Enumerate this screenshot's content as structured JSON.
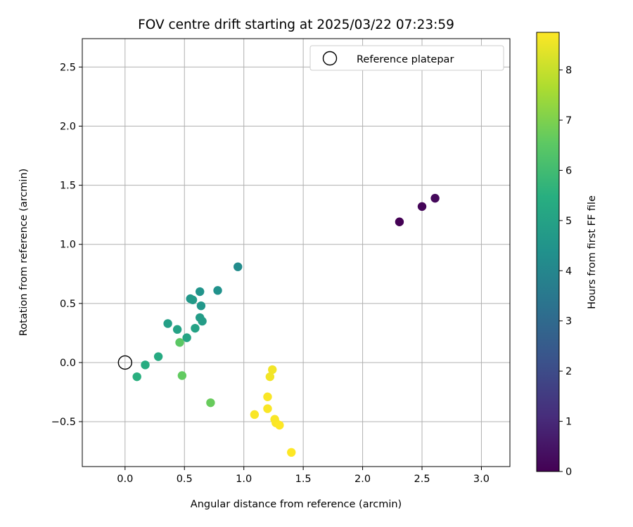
{
  "chart_data": {
    "type": "scatter",
    "title": "FOV centre drift starting at 2025/03/22 07:23:59",
    "xlabel": "Angular distance from reference (arcmin)",
    "ylabel": "Rotation from reference (arcmin)",
    "xlim": [
      -0.36,
      3.24
    ],
    "ylim": [
      -0.88,
      2.74
    ],
    "xticks": [
      0.0,
      0.5,
      1.0,
      1.5,
      2.0,
      2.5,
      3.0
    ],
    "xtick_labels": [
      "0.0",
      "0.5",
      "1.0",
      "1.5",
      "2.0",
      "2.5",
      "3.0"
    ],
    "yticks": [
      -0.5,
      0.0,
      0.5,
      1.0,
      1.5,
      2.0,
      2.5
    ],
    "ytick_labels": [
      "−0.5",
      "0.0",
      "0.5",
      "1.0",
      "1.5",
      "2.0",
      "2.5"
    ],
    "grid": true,
    "legend": {
      "position": "upper-right",
      "entries": [
        "Reference platepar"
      ]
    },
    "reference_point": {
      "name": "Reference platepar",
      "x": 0.0,
      "y": 0.0
    },
    "colorbar": {
      "label": "Hours from first FF file",
      "colormap": "viridis",
      "range": [
        0,
        8.75
      ],
      "ticks": [
        0,
        1,
        2,
        3,
        4,
        5,
        6,
        7,
        8
      ],
      "tick_labels": [
        "0",
        "1",
        "2",
        "3",
        "4",
        "5",
        "6",
        "7",
        "8"
      ]
    },
    "points": [
      {
        "x": 2.31,
        "y": 1.19,
        "hours": 0.0
      },
      {
        "x": 2.5,
        "y": 1.32,
        "hours": 0.1
      },
      {
        "x": 2.61,
        "y": 1.39,
        "hours": 0.2
      },
      {
        "x": 0.95,
        "y": 0.81,
        "hours": 4.2
      },
      {
        "x": 0.78,
        "y": 0.61,
        "hours": 4.4
      },
      {
        "x": 0.63,
        "y": 0.6,
        "hours": 4.5
      },
      {
        "x": 0.55,
        "y": 0.54,
        "hours": 4.6
      },
      {
        "x": 0.57,
        "y": 0.53,
        "hours": 4.7
      },
      {
        "x": 0.64,
        "y": 0.48,
        "hours": 4.6
      },
      {
        "x": 0.63,
        "y": 0.38,
        "hours": 4.8
      },
      {
        "x": 0.65,
        "y": 0.35,
        "hours": 4.8
      },
      {
        "x": 0.36,
        "y": 0.33,
        "hours": 4.9
      },
      {
        "x": 0.59,
        "y": 0.29,
        "hours": 5.0
      },
      {
        "x": 0.44,
        "y": 0.28,
        "hours": 5.0
      },
      {
        "x": 0.52,
        "y": 0.21,
        "hours": 5.1
      },
      {
        "x": 0.28,
        "y": 0.05,
        "hours": 5.3
      },
      {
        "x": 0.17,
        "y": -0.02,
        "hours": 5.4
      },
      {
        "x": 0.1,
        "y": -0.12,
        "hours": 5.5
      },
      {
        "x": 0.46,
        "y": 0.17,
        "hours": 6.5
      },
      {
        "x": 0.48,
        "y": -0.11,
        "hours": 6.6
      },
      {
        "x": 0.72,
        "y": -0.34,
        "hours": 6.7
      },
      {
        "x": 1.24,
        "y": -0.06,
        "hours": 8.6
      },
      {
        "x": 1.22,
        "y": -0.12,
        "hours": 8.6
      },
      {
        "x": 1.2,
        "y": -0.29,
        "hours": 8.7
      },
      {
        "x": 1.2,
        "y": -0.39,
        "hours": 8.7
      },
      {
        "x": 1.09,
        "y": -0.44,
        "hours": 8.7
      },
      {
        "x": 1.26,
        "y": -0.48,
        "hours": 8.7
      },
      {
        "x": 1.27,
        "y": -0.51,
        "hours": 8.7
      },
      {
        "x": 1.3,
        "y": -0.53,
        "hours": 8.75
      },
      {
        "x": 1.4,
        "y": -0.76,
        "hours": 8.75
      }
    ]
  }
}
